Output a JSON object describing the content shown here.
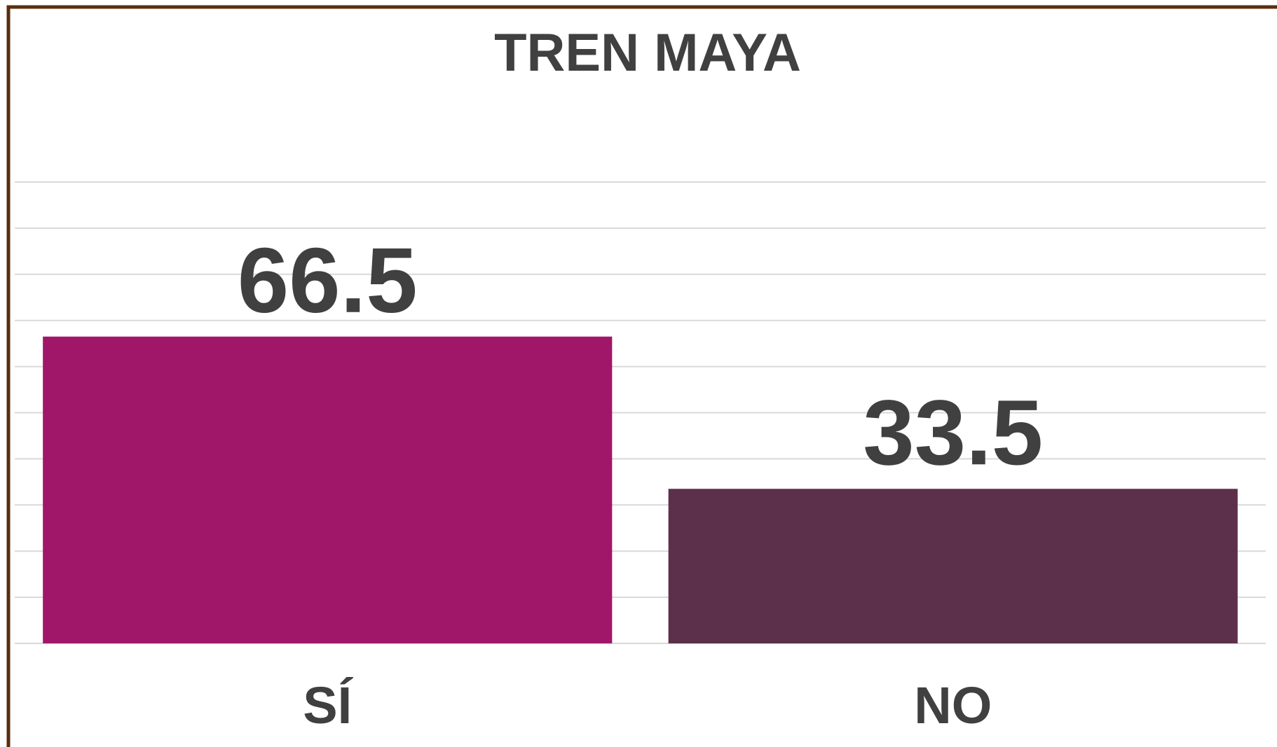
{
  "chart_data": {
    "type": "bar",
    "title": "TREN MAYA",
    "categories": [
      "SÍ",
      "NO"
    ],
    "values": [
      66.5,
      33.5
    ],
    "colors": [
      "#a0176a",
      "#5c2f4b"
    ],
    "ylim": [
      0,
      100
    ],
    "yticks": [
      0,
      10,
      20,
      30,
      40,
      50,
      60,
      70,
      80,
      90,
      100
    ],
    "grid": true
  }
}
